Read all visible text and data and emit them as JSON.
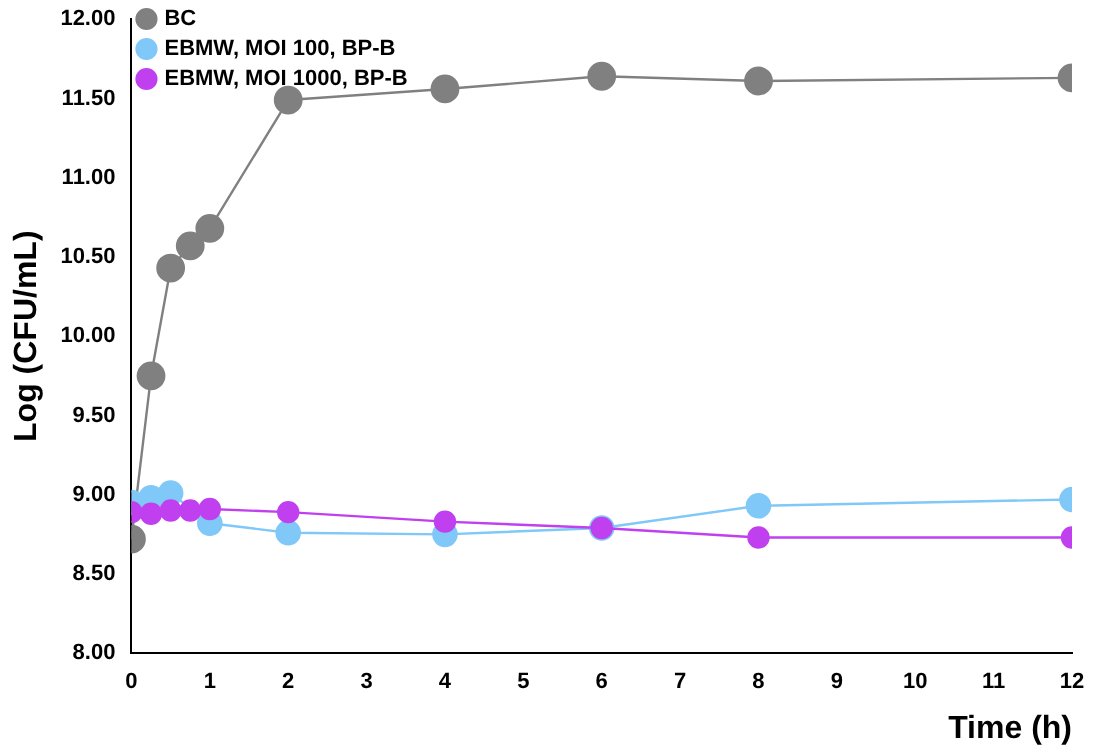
{
  "chart_data": {
    "type": "line",
    "xlabel": "Time (h)",
    "ylabel": "Log (CFU/mL)",
    "xlim": [
      0,
      12
    ],
    "xticks": [
      0,
      1,
      2,
      3,
      4,
      5,
      6,
      7,
      8,
      9,
      10,
      11,
      12
    ],
    "ylim": [
      8,
      12
    ],
    "yticks": [
      {
        "value": 8,
        "label": "8.00"
      },
      {
        "value": 8.5,
        "label": "8.50"
      },
      {
        "value": 9,
        "label": "9.00"
      },
      {
        "value": 9.5,
        "label": "9.50"
      },
      {
        "value": 10,
        "label": "10.00"
      },
      {
        "value": 10.5,
        "label": "10.50"
      },
      {
        "value": 11,
        "label": "11.00"
      },
      {
        "value": 11.5,
        "label": "11.50"
      },
      {
        "value": 12,
        "label": "12.00"
      }
    ],
    "x": [
      0,
      0.25,
      0.5,
      0.75,
      1,
      2,
      4,
      6,
      8,
      12
    ],
    "series": [
      {
        "name": "BC",
        "color": "#808080",
        "values": [
          8.72,
          9.75,
          10.43,
          10.57,
          10.68,
          11.49,
          11.56,
          11.64,
          11.61,
          11.63
        ]
      },
      {
        "name": "EBMW, MOI 100, BP-B",
        "color": "#7fc8f8",
        "values": [
          8.95,
          8.98,
          9.01,
          null,
          8.82,
          8.76,
          8.75,
          8.79,
          8.93,
          8.97
        ]
      },
      {
        "name": "EBMW, MOI 1000, BP-B",
        "color": "#c040f0",
        "values": [
          8.89,
          8.88,
          8.9,
          8.9,
          8.91,
          8.89,
          8.83,
          8.79,
          8.73,
          8.73
        ]
      }
    ],
    "legend": "top left",
    "marker": "circle",
    "grid": false
  }
}
